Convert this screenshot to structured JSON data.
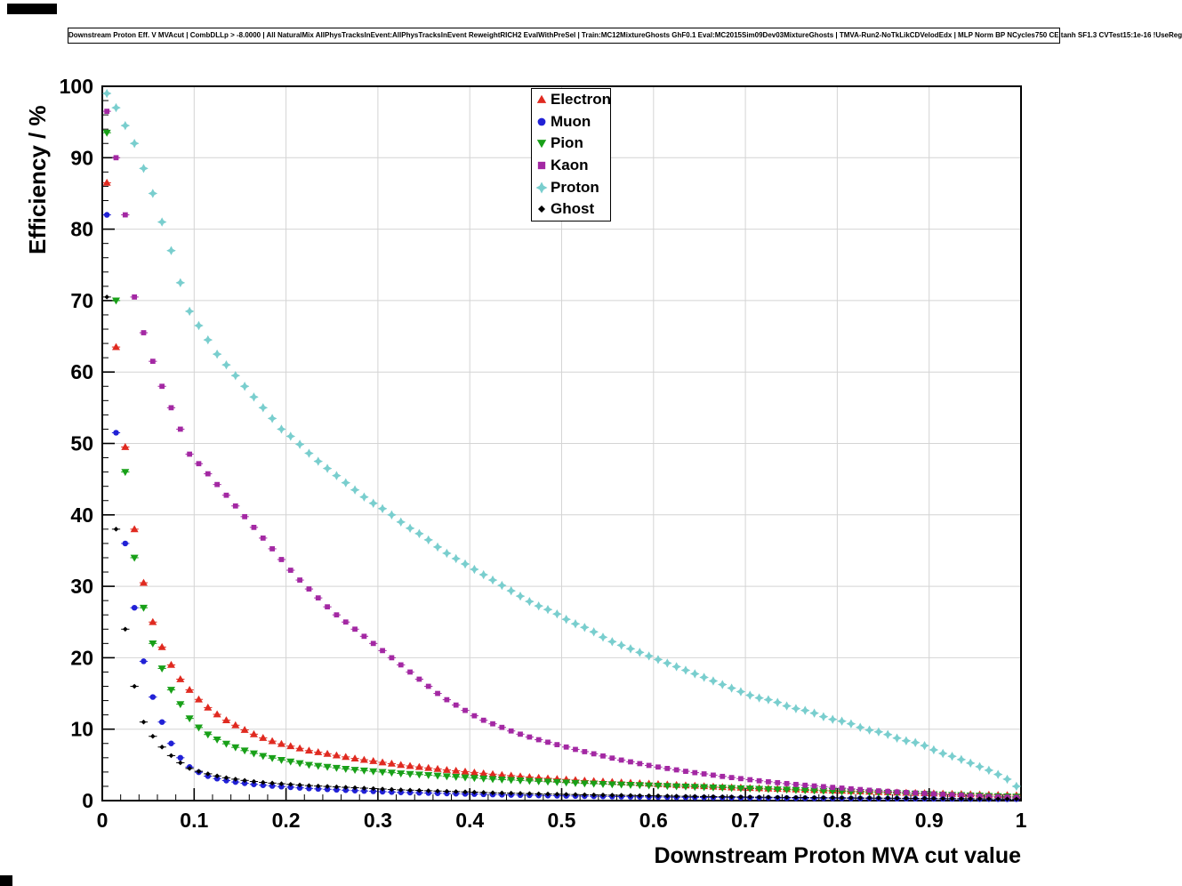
{
  "chart_data": {
    "type": "scatter",
    "title": "Downstream Proton Eff. V MVAcut | CombDLLp > -8.0000 | All NaturalMix AllPhysTracksInEvent:AllPhysTracksInEvent ReweightRICH2 EvalWithPreSel | Train:MC12MixtureGhosts GhF0.1 Eval:MC2015Sim09Dev03MixtureGhosts | TMVA-Run2-NoTkLikCDVelodEdx | MLP Norm BP NCycles750 CE tanh SF1.3 CVTest15:1e-16 !UseReg",
    "xlabel": "Downstream Proton MVA cut value",
    "ylabel": "Efficiency / %",
    "xlim": [
      0,
      1
    ],
    "ylim": [
      0,
      100
    ],
    "xticks": [
      "0",
      "0.1",
      "0.2",
      "0.3",
      "0.4",
      "0.5",
      "0.6",
      "0.7",
      "0.8",
      "0.9",
      "1"
    ],
    "yticks": [
      "0",
      "10",
      "20",
      "30",
      "40",
      "50",
      "60",
      "70",
      "80",
      "90",
      "100"
    ],
    "x_minor_step": 0.02,
    "y_minor_step": 2,
    "grid": true,
    "grid_color": "#d4d4d4",
    "frame_color": "#000000",
    "bin_width": 0.01,
    "legend_position": "top-center",
    "series": [
      {
        "name": "Electron",
        "marker": "triangle-up",
        "color": "#e02a20",
        "x": [
          0.005,
          0.015,
          0.025,
          0.035,
          0.045,
          0.055,
          0.065,
          0.075,
          0.085,
          0.095,
          0.11,
          0.13,
          0.15,
          0.17,
          0.19,
          0.225,
          0.275,
          0.325,
          0.375,
          0.425,
          0.475,
          0.525,
          0.575,
          0.625,
          0.675,
          0.725,
          0.775,
          0.825,
          0.875,
          0.925,
          0.975,
          0.995
        ],
        "y": [
          86.5,
          63.5,
          49.5,
          38,
          30.5,
          25,
          21.5,
          19,
          17,
          15.5,
          13.5,
          11.6,
          10.2,
          9,
          8.1,
          7,
          5.9,
          5,
          4.3,
          3.7,
          3.2,
          2.8,
          2.5,
          2.2,
          1.9,
          1.7,
          1.5,
          1.3,
          1.1,
          0.95,
          0.8,
          0.75
        ]
      },
      {
        "name": "Muon",
        "marker": "circle",
        "color": "#2121d6",
        "x": [
          0.005,
          0.015,
          0.025,
          0.035,
          0.045,
          0.055,
          0.065,
          0.075,
          0.085,
          0.095,
          0.11,
          0.13,
          0.15,
          0.17,
          0.19,
          0.225,
          0.275,
          0.325,
          0.375,
          0.425,
          0.475,
          0.525,
          0.575,
          0.625,
          0.675,
          0.725,
          0.775,
          0.825,
          0.875,
          0.925,
          0.975,
          0.995
        ],
        "y": [
          82,
          51.5,
          36,
          27,
          19.5,
          14.5,
          11,
          8,
          6,
          4.7,
          3.6,
          2.9,
          2.5,
          2.2,
          2.0,
          1.7,
          1.4,
          1.15,
          1.0,
          0.85,
          0.72,
          0.62,
          0.54,
          0.47,
          0.42,
          0.37,
          0.33,
          0.3,
          0.27,
          0.24,
          0.21,
          0.2
        ]
      },
      {
        "name": "Pion",
        "marker": "triangle-down",
        "color": "#18a018",
        "x": [
          0.005,
          0.015,
          0.025,
          0.035,
          0.045,
          0.055,
          0.065,
          0.075,
          0.085,
          0.095,
          0.11,
          0.13,
          0.15,
          0.17,
          0.19,
          0.225,
          0.275,
          0.325,
          0.375,
          0.425,
          0.475,
          0.525,
          0.575,
          0.625,
          0.675,
          0.725,
          0.775,
          0.825,
          0.875,
          0.925,
          0.975,
          0.995
        ],
        "y": [
          93.5,
          70,
          46,
          34,
          27,
          22,
          18.5,
          15.5,
          13.5,
          11.5,
          9.6,
          8.2,
          7.2,
          6.4,
          5.8,
          5.0,
          4.3,
          3.8,
          3.4,
          3.0,
          2.7,
          2.4,
          2.2,
          2.0,
          1.8,
          1.6,
          1.4,
          1.2,
          1.0,
          0.8,
          0.6,
          0.55
        ]
      },
      {
        "name": "Kaon",
        "marker": "square",
        "color": "#a328a3",
        "x": [
          0.005,
          0.015,
          0.025,
          0.035,
          0.045,
          0.055,
          0.065,
          0.075,
          0.085,
          0.095,
          0.11,
          0.13,
          0.15,
          0.17,
          0.19,
          0.21,
          0.23,
          0.25,
          0.27,
          0.29,
          0.31,
          0.33,
          0.35,
          0.37,
          0.39,
          0.41,
          0.43,
          0.45,
          0.47,
          0.49,
          0.52,
          0.56,
          0.6,
          0.64,
          0.68,
          0.72,
          0.76,
          0.8,
          0.84,
          0.88,
          0.92,
          0.96,
          0.995
        ],
        "y": [
          96.5,
          90,
          82,
          70.5,
          65.5,
          61.5,
          58,
          55,
          52,
          48.5,
          46.5,
          43.5,
          40.5,
          37.5,
          34.5,
          31.5,
          29,
          26.5,
          24.5,
          22.5,
          20.5,
          18.5,
          16.5,
          14.5,
          13,
          11.5,
          10.5,
          9.5,
          8.7,
          8,
          7,
          5.8,
          4.8,
          4,
          3.3,
          2.7,
          2.2,
          1.8,
          1.4,
          1.1,
          0.85,
          0.6,
          0.45
        ]
      },
      {
        "name": "Proton",
        "marker": "star",
        "color": "#79cece",
        "x": [
          0.005,
          0.015,
          0.025,
          0.035,
          0.045,
          0.055,
          0.065,
          0.075,
          0.085,
          0.095,
          0.105,
          0.115,
          0.125,
          0.135,
          0.145,
          0.155,
          0.165,
          0.175,
          0.185,
          0.195,
          0.21,
          0.23,
          0.25,
          0.27,
          0.29,
          0.31,
          0.33,
          0.35,
          0.37,
          0.39,
          0.41,
          0.43,
          0.45,
          0.47,
          0.49,
          0.51,
          0.53,
          0.55,
          0.57,
          0.59,
          0.61,
          0.63,
          0.65,
          0.67,
          0.69,
          0.71,
          0.73,
          0.75,
          0.77,
          0.79,
          0.81,
          0.83,
          0.85,
          0.87,
          0.89,
          0.91,
          0.93,
          0.95,
          0.97,
          0.985,
          0.995
        ],
        "y": [
          99,
          97,
          94.5,
          92,
          88.5,
          85,
          81,
          77,
          72.5,
          68.5,
          66.5,
          64.5,
          62.5,
          61,
          59.5,
          58,
          56.5,
          55,
          53.5,
          52,
          50.5,
          48,
          46,
          44,
          42,
          40.5,
          38.5,
          37,
          35,
          33.5,
          32,
          30.5,
          29,
          27.5,
          26.5,
          25,
          24,
          22.5,
          21.5,
          20.5,
          19.5,
          18.5,
          17.5,
          16.5,
          15.5,
          14.5,
          14,
          13,
          12.5,
          11.5,
          11,
          10,
          9.5,
          8.5,
          8,
          6.8,
          6,
          5,
          4,
          3,
          2
        ]
      },
      {
        "name": "Ghost",
        "marker": "diamond",
        "color": "#000000",
        "x": [
          0.005,
          0.015,
          0.025,
          0.035,
          0.045,
          0.055,
          0.065,
          0.075,
          0.085,
          0.095,
          0.11,
          0.13,
          0.15,
          0.17,
          0.19,
          0.225,
          0.275,
          0.325,
          0.375,
          0.425,
          0.475,
          0.525,
          0.575,
          0.625,
          0.675,
          0.725,
          0.775,
          0.825,
          0.875,
          0.925,
          0.975,
          0.995
        ],
        "y": [
          70.5,
          38,
          24,
          16,
          11,
          9,
          7.5,
          6.3,
          5.3,
          4.5,
          3.9,
          3.3,
          2.9,
          2.6,
          2.4,
          2.1,
          1.8,
          1.5,
          1.3,
          1.1,
          0.95,
          0.82,
          0.72,
          0.62,
          0.54,
          0.47,
          0.42,
          0.37,
          0.32,
          0.27,
          0.23,
          0.22
        ]
      }
    ]
  }
}
